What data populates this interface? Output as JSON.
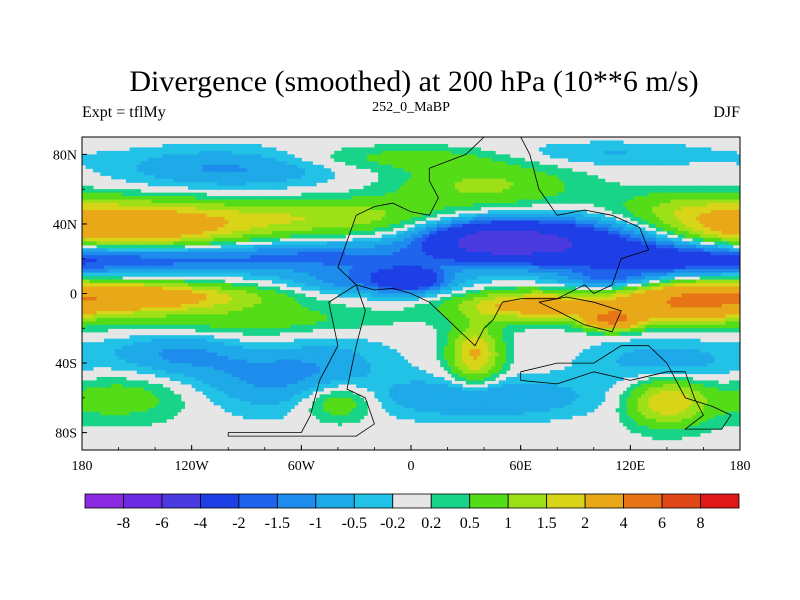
{
  "chart_data": {
    "type": "heatmap",
    "title": "Divergence (smoothed) at 200 hPa (10**6 m/s)",
    "left_label": "Expt = tflMy",
    "center_label": "252_0_MaBP",
    "right_label": "DJF",
    "x_ticks": [
      {
        "lon": -180,
        "label": "180"
      },
      {
        "lon": -120,
        "label": "120W"
      },
      {
        "lon": -60,
        "label": "60W"
      },
      {
        "lon": 0,
        "label": "0"
      },
      {
        "lon": 60,
        "label": "60E"
      },
      {
        "lon": 120,
        "label": "120E"
      },
      {
        "lon": 180,
        "label": "180"
      }
    ],
    "y_ticks": [
      {
        "lat": 80,
        "label": "80N"
      },
      {
        "lat": 40,
        "label": "40N"
      },
      {
        "lat": 0,
        "label": "0"
      },
      {
        "lat": -40,
        "label": "40S"
      },
      {
        "lat": -80,
        "label": "80S"
      }
    ],
    "xlim": [
      -180,
      180
    ],
    "ylim": [
      -90,
      90
    ],
    "colorbar": {
      "labels": [
        "-8",
        "-6",
        "-4",
        "-2",
        "-1.5",
        "-1",
        "-0.5",
        "-0.2",
        "0.2",
        "0.5",
        "1",
        "1.5",
        "2",
        "4",
        "6",
        "8"
      ],
      "colors": [
        "#8a2be2",
        "#6a2be2",
        "#4a3ae0",
        "#1f3fe6",
        "#1e64ec",
        "#1e8ced",
        "#1ea9e8",
        "#22c2e6",
        "#e6e6e6",
        "#18d488",
        "#55dc18",
        "#9ee018",
        "#d8d418",
        "#e8a818",
        "#e87418",
        "#e04818",
        "#e01818"
      ]
    },
    "levels": [
      -8,
      -6,
      -4,
      -2,
      -1.5,
      -1,
      -0.5,
      -0.2,
      0.2,
      0.5,
      1,
      1.5,
      2,
      4,
      6,
      8
    ],
    "field_features": [
      {
        "lon": -160,
        "lat": 37,
        "slon": 40,
        "slat": 10,
        "amp": 2.6
      },
      {
        "lon": -100,
        "lat": 42,
        "slon": 55,
        "slat": 8,
        "amp": 1.1
      },
      {
        "lon": -30,
        "lat": 45,
        "slon": 40,
        "slat": 7,
        "amp": 0.8
      },
      {
        "lon": 40,
        "lat": 62,
        "slon": 35,
        "slat": 9,
        "amp": 1.1
      },
      {
        "lon": 0,
        "lat": 78,
        "slon": 50,
        "slat": 5,
        "amp": 0.7
      },
      {
        "lon": 150,
        "lat": 48,
        "slon": 30,
        "slat": 8,
        "amp": 0.9
      },
      {
        "lon": -140,
        "lat": 20,
        "slon": 50,
        "slat": 6,
        "amp": -1.8
      },
      {
        "lon": -40,
        "lat": 22,
        "slon": 40,
        "slat": 6,
        "amp": -1.3
      },
      {
        "lon": 40,
        "lat": 30,
        "slon": 25,
        "slat": 8,
        "amp": -3.5
      },
      {
        "lon": 80,
        "lat": 30,
        "slon": 35,
        "slat": 9,
        "amp": -3.2
      },
      {
        "lon": 140,
        "lat": 20,
        "slon": 40,
        "slat": 7,
        "amp": -2.2
      },
      {
        "lon": -100,
        "lat": 72,
        "slon": 40,
        "slat": 8,
        "amp": -1.1
      },
      {
        "lon": 100,
        "lat": 80,
        "slon": 45,
        "slat": 5,
        "amp": -0.6
      },
      {
        "lon": -160,
        "lat": -2,
        "slon": 30,
        "slat": 6,
        "amp": 2.8
      },
      {
        "lon": -110,
        "lat": -2,
        "slon": 35,
        "slat": 5,
        "amp": 1.2
      },
      {
        "lon": 70,
        "lat": -7,
        "slon": 30,
        "slat": 6,
        "amp": 2.6
      },
      {
        "lon": 150,
        "lat": -5,
        "slon": 25,
        "slat": 8,
        "amp": 3.8
      },
      {
        "lon": 110,
        "lat": -15,
        "slon": 10,
        "slat": 4,
        "amp": 4.0
      },
      {
        "lon": 35,
        "lat": -35,
        "slon": 10,
        "slat": 12,
        "amp": 2.1
      },
      {
        "lon": -20,
        "lat": 8,
        "slon": 30,
        "slat": 6,
        "amp": -1.5
      },
      {
        "lon": 0,
        "lat": 8,
        "slon": 12,
        "slat": 5,
        "amp": -2.3
      },
      {
        "lon": 110,
        "lat": 8,
        "slon": 20,
        "slat": 4,
        "amp": -1.3
      },
      {
        "lon": -90,
        "lat": -15,
        "slon": 50,
        "slat": 6,
        "amp": 0.9
      },
      {
        "lon": -70,
        "lat": -45,
        "slon": 35,
        "slat": 15,
        "amp": -1.3
      },
      {
        "lon": -130,
        "lat": -35,
        "slon": 25,
        "slat": 8,
        "amp": -0.9
      },
      {
        "lon": 40,
        "lat": -60,
        "slon": 40,
        "slat": 8,
        "amp": -1.1
      },
      {
        "lon": 140,
        "lat": -40,
        "slon": 30,
        "slat": 10,
        "amp": -0.8
      },
      {
        "lon": -160,
        "lat": -60,
        "slon": 30,
        "slat": 10,
        "amp": 0.8
      },
      {
        "lon": -40,
        "lat": -62,
        "slon": 15,
        "slat": 8,
        "amp": 1.3
      },
      {
        "lon": 140,
        "lat": -62,
        "slon": 15,
        "slat": 10,
        "amp": 2.0
      },
      {
        "lon": -80,
        "lat": -30,
        "slon": 20,
        "slat": 8,
        "amp": 0.5
      }
    ],
    "coastline": [
      [
        [
          -30,
          5
        ],
        [
          -40,
          15
        ],
        [
          -35,
          30
        ],
        [
          -30,
          45
        ],
        [
          -20,
          50
        ],
        [
          -10,
          52
        ],
        [
          0,
          47
        ],
        [
          10,
          45
        ],
        [
          15,
          55
        ],
        [
          10,
          65
        ],
        [
          10,
          72
        ],
        [
          30,
          80
        ],
        [
          35,
          85
        ],
        [
          40,
          90
        ],
        [
          60,
          90
        ],
        [
          65,
          80
        ],
        [
          70,
          60
        ],
        [
          80,
          45
        ],
        [
          95,
          48
        ],
        [
          110,
          45
        ],
        [
          125,
          38
        ],
        [
          130,
          25
        ],
        [
          115,
          20
        ],
        [
          110,
          5
        ],
        [
          100,
          0
        ],
        [
          95,
          5
        ],
        [
          80,
          -3
        ],
        [
          60,
          -3
        ],
        [
          50,
          -5
        ],
        [
          45,
          -15
        ],
        [
          40,
          -20
        ],
        [
          35,
          -30
        ],
        [
          30,
          -25
        ],
        [
          20,
          -15
        ],
        [
          10,
          -5
        ],
        [
          0,
          0
        ],
        [
          -10,
          3
        ],
        [
          -20,
          2
        ],
        [
          -30,
          5
        ]
      ],
      [
        [
          -30,
          5
        ],
        [
          -45,
          -5
        ],
        [
          -40,
          -30
        ],
        [
          -50,
          -50
        ],
        [
          -55,
          -70
        ],
        [
          -60,
          -80
        ],
        [
          -80,
          -80
        ],
        [
          -100,
          -80
        ],
        [
          -100,
          -82
        ],
        [
          -30,
          -82
        ],
        [
          -20,
          -75
        ],
        [
          -25,
          -60
        ],
        [
          -35,
          -55
        ],
        [
          -30,
          -30
        ],
        [
          -25,
          -10
        ],
        [
          -30,
          5
        ]
      ],
      [
        [
          60,
          -45
        ],
        [
          60,
          -50
        ],
        [
          80,
          -52
        ],
        [
          100,
          -45
        ],
        [
          120,
          -50
        ],
        [
          140,
          -45
        ],
        [
          150,
          -45
        ],
        [
          155,
          -60
        ],
        [
          160,
          -70
        ],
        [
          150,
          -78
        ],
        [
          170,
          -78
        ],
        [
          175,
          -70
        ],
        [
          165,
          -65
        ],
        [
          150,
          -60
        ],
        [
          140,
          -40
        ],
        [
          130,
          -30
        ],
        [
          115,
          -30
        ],
        [
          100,
          -40
        ],
        [
          80,
          -40
        ],
        [
          60,
          -45
        ]
      ],
      [
        [
          70,
          -5
        ],
        [
          80,
          -10
        ],
        [
          95,
          -18
        ],
        [
          110,
          -22
        ],
        [
          115,
          -10
        ],
        [
          100,
          -5
        ],
        [
          85,
          -2
        ],
        [
          70,
          -5
        ]
      ]
    ]
  }
}
